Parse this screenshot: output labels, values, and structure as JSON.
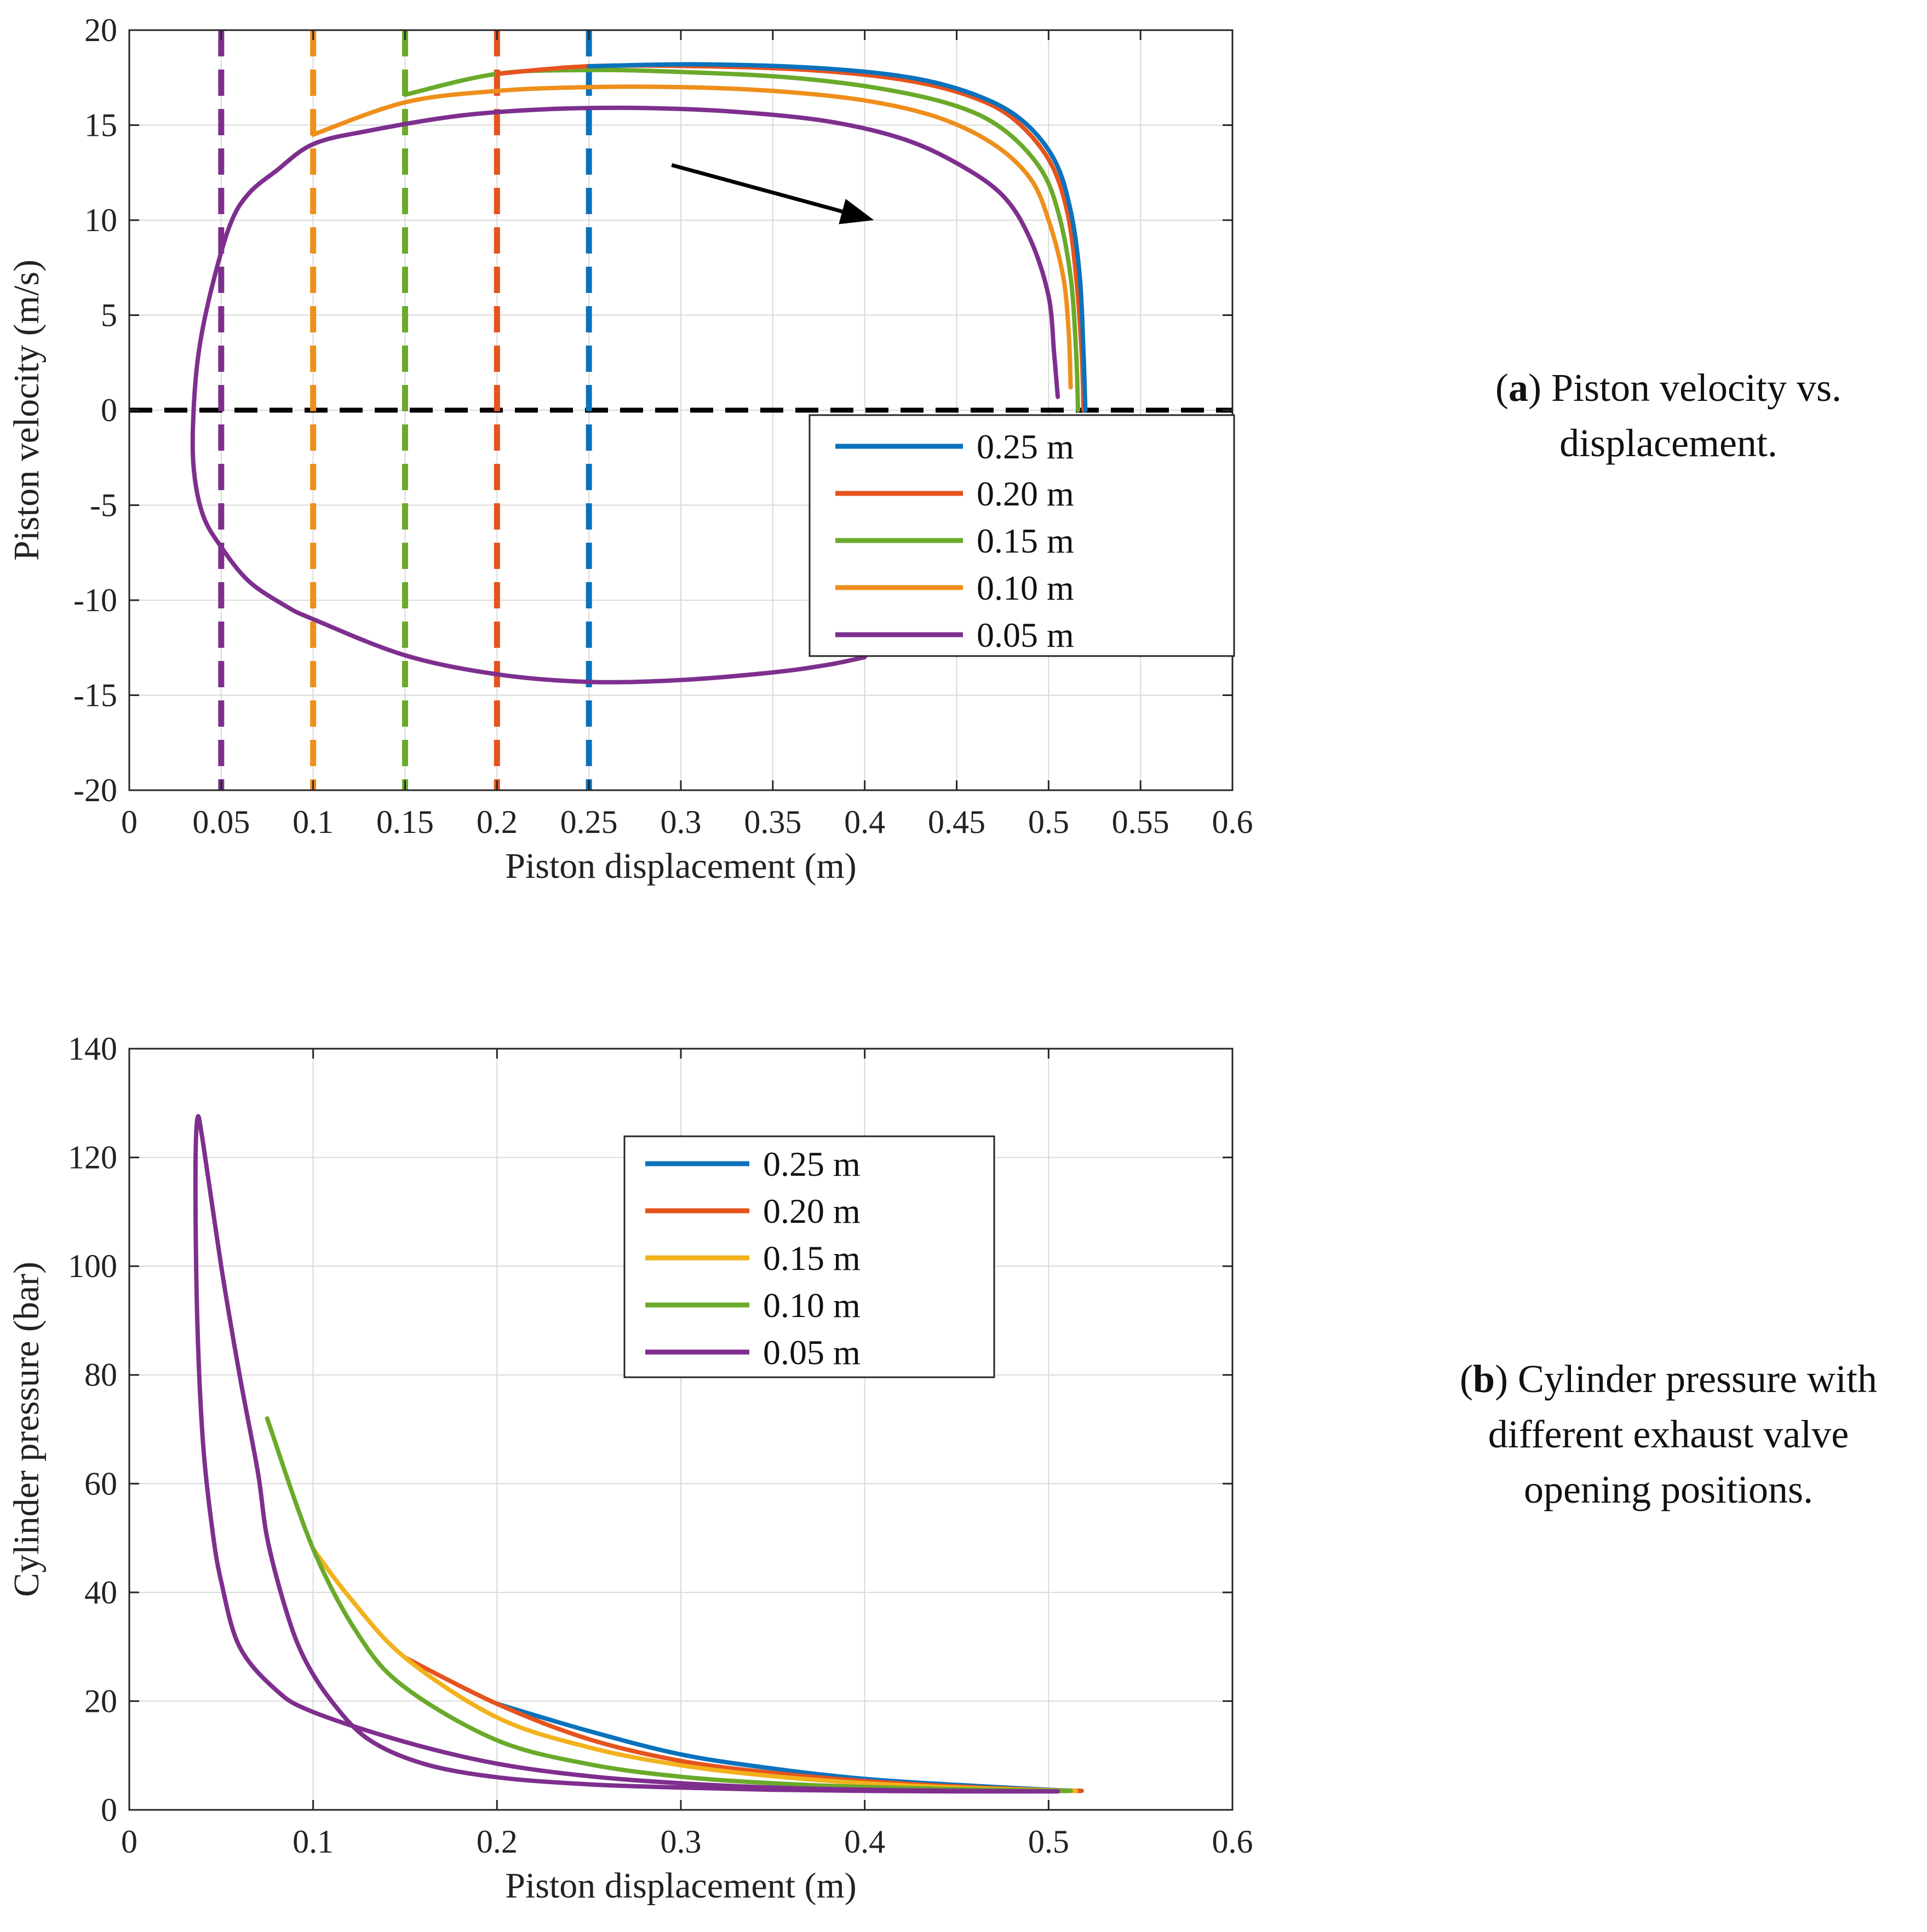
{
  "chart_data": [
    {
      "type": "line",
      "panel": "a",
      "xlabel": "Piston displacement (m)",
      "ylabel": "Piston velocity (m/s)",
      "xlim": [
        0,
        0.6
      ],
      "ylim": [
        -20,
        20
      ],
      "xticks": [
        0,
        0.05,
        0.1,
        0.15,
        0.2,
        0.25,
        0.3,
        0.35,
        0.4,
        0.45,
        0.5,
        0.55,
        0.6
      ],
      "xtick_labels": [
        "0",
        "0.05",
        "0.1",
        "0.15",
        "0.2",
        "0.25",
        "0.3",
        "0.35",
        "0.4",
        "0.45",
        "0.5",
        "0.55",
        "0.6"
      ],
      "yticks": [
        -20,
        -15,
        -10,
        -5,
        0,
        5,
        10,
        15,
        20
      ],
      "ytick_labels": [
        "-20",
        "-15",
        "-10",
        "-5",
        "0",
        "5",
        "10",
        "15",
        "20"
      ],
      "grid": true,
      "legend_position": "right-center",
      "legend": [
        "0.25 m",
        "0.20 m",
        "0.15 m",
        "0.10 m",
        "0.05 m"
      ],
      "series": [
        {
          "name": "0.05 m",
          "color": "#7E2F8E",
          "x": [
            0.505,
            0.503,
            0.5,
            0.49,
            0.475,
            0.45,
            0.42,
            0.38,
            0.33,
            0.28,
            0.23,
            0.18,
            0.13,
            0.1,
            0.08,
            0.065,
            0.055,
            0.045,
            0.038,
            0.035,
            0.035,
            0.04,
            0.05,
            0.065,
            0.085,
            0.1,
            0.15,
            0.2,
            0.25,
            0.3,
            0.35,
            0.38,
            0.4
          ],
          "y": [
            0.7,
            3,
            6,
            9,
            11.3,
            13,
            14.3,
            15.2,
            15.7,
            15.9,
            15.85,
            15.5,
            14.7,
            14,
            12.6,
            11.4,
            9.8,
            6.5,
            3.2,
            0,
            -3,
            -5.5,
            -7.2,
            -9,
            -10.3,
            -11,
            -12.9,
            -13.9,
            -14.3,
            -14.2,
            -13.8,
            -13.4,
            -13
          ]
        },
        {
          "name": "0.10 m",
          "color": "#EE8F1C",
          "x": [
            0.512,
            0.511,
            0.508,
            0.5,
            0.49,
            0.47,
            0.44,
            0.4,
            0.35,
            0.3,
            0.25,
            0.2,
            0.15,
            0.1
          ],
          "y": [
            1.2,
            4,
            7,
            10,
            12.2,
            14,
            15.4,
            16.3,
            16.8,
            17,
            17,
            16.8,
            16.2,
            14.5
          ]
        },
        {
          "name": "0.15 m",
          "color": "#6AAA2A",
          "x": [
            0.516,
            0.515,
            0.512,
            0.505,
            0.495,
            0.475,
            0.45,
            0.41,
            0.36,
            0.3,
            0.25,
            0.2,
            0.15
          ],
          "y": [
            0,
            3,
            7,
            10.5,
            12.8,
            14.8,
            16,
            16.9,
            17.5,
            17.8,
            17.9,
            17.7,
            16.6
          ]
        },
        {
          "name": "0.20 m",
          "color": "#E6531D",
          "x": [
            0.519,
            0.518,
            0.515,
            0.51,
            0.5,
            0.48,
            0.455,
            0.42,
            0.37,
            0.31,
            0.25,
            0.2
          ],
          "y": [
            0,
            3,
            7,
            10.5,
            13.2,
            15.4,
            16.6,
            17.4,
            17.9,
            18.1,
            18.1,
            17.7
          ]
        },
        {
          "name": "0.25 m",
          "color": "#0A72BD",
          "x": [
            0.52,
            0.519,
            0.517,
            0.512,
            0.503,
            0.485,
            0.46,
            0.425,
            0.375,
            0.31,
            0.25
          ],
          "y": [
            0,
            3,
            7,
            10.5,
            13.2,
            15.3,
            16.6,
            17.5,
            18,
            18.2,
            18.1
          ]
        }
      ],
      "markers": [
        {
          "name": "0.05 m",
          "x": 0.05,
          "color": "#7E2F8E"
        },
        {
          "name": "0.10 m",
          "x": 0.1,
          "color": "#EE8F1C"
        },
        {
          "name": "0.15 m",
          "x": 0.15,
          "color": "#6AAA2A"
        },
        {
          "name": "0.20 m",
          "x": 0.2,
          "color": "#E6531D"
        },
        {
          "name": "0.25 m",
          "x": 0.25,
          "color": "#0A72BD"
        }
      ],
      "zero_line": {
        "y": 0,
        "color": "#000000"
      },
      "arrow": {
        "from": [
          0.295,
          12.9
        ],
        "to": [
          0.405,
          10
        ]
      }
    },
    {
      "type": "line",
      "panel": "b",
      "xlabel": "Piston displacement (m)",
      "ylabel": "Cylinder pressure (bar)",
      "xlim": [
        0,
        0.6
      ],
      "ylim": [
        0,
        140
      ],
      "xticks": [
        0,
        0.1,
        0.2,
        0.3,
        0.4,
        0.5,
        0.6
      ],
      "xtick_labels": [
        "0",
        "0.1",
        "0.2",
        "0.3",
        "0.4",
        "0.5",
        "0.6"
      ],
      "yticks": [
        0,
        20,
        40,
        60,
        80,
        100,
        120,
        140
      ],
      "ytick_labels": [
        "0",
        "20",
        "40",
        "60",
        "80",
        "100",
        "120",
        "140"
      ],
      "grid": true,
      "legend_position": "top-center",
      "legend": [
        "0.25 m",
        "0.20 m",
        "0.15 m",
        "0.10 m",
        "0.05 m"
      ],
      "series": [
        {
          "name": "0.25 m",
          "color": "#0A72BD",
          "x": [
            0.2,
            0.25,
            0.3,
            0.35,
            0.4,
            0.45,
            0.5,
            0.518
          ],
          "y": [
            19.5,
            14.5,
            10.2,
            7.6,
            5.7,
            4.6,
            3.7,
            3.5
          ]
        },
        {
          "name": "0.20 m",
          "color": "#E6531D",
          "x": [
            0.15,
            0.2,
            0.25,
            0.3,
            0.35,
            0.4,
            0.45,
            0.5,
            0.518
          ],
          "y": [
            28,
            19.5,
            13,
            9,
            6.8,
            5.3,
            4.3,
            3.6,
            3.5
          ]
        },
        {
          "name": "0.15 m",
          "color": "#F2B21B",
          "x": [
            0.1,
            0.12,
            0.15,
            0.2,
            0.25,
            0.3,
            0.35,
            0.4,
            0.45,
            0.5,
            0.515
          ],
          "y": [
            48,
            39,
            28,
            17,
            11.5,
            8.2,
            6.2,
            4.9,
            4.1,
            3.6,
            3.5
          ]
        },
        {
          "name": "0.10 m",
          "color": "#6AAA2A",
          "x": [
            0.075,
            0.1,
            0.125,
            0.15,
            0.2,
            0.25,
            0.3,
            0.35,
            0.4,
            0.45,
            0.5,
            0.512
          ],
          "y": [
            72,
            48,
            32,
            22.5,
            12.8,
            8.4,
            6.1,
            4.9,
            4.2,
            3.8,
            3.5,
            3.5
          ]
        },
        {
          "name": "0.05 m",
          "color": "#7E2F8E",
          "x": [
            0.505,
            0.45,
            0.4,
            0.35,
            0.3,
            0.25,
            0.2,
            0.16,
            0.13,
            0.11,
            0.095,
            0.085,
            0.075,
            0.07,
            0.06,
            0.05,
            0.04,
            0.037,
            0.036,
            0.037,
            0.04,
            0.045,
            0.05,
            0.06,
            0.08,
            0.1,
            0.15,
            0.2,
            0.25,
            0.3,
            0.35,
            0.4,
            0.45,
            0.505
          ],
          "y": [
            3.4,
            3.4,
            3.5,
            3.7,
            4.1,
            4.7,
            6,
            8.5,
            13,
            20,
            28,
            37,
            50,
            62,
            80,
            100,
            123,
            127,
            115,
            90,
            68,
            52,
            42,
            30,
            22,
            18,
            12.5,
            8.5,
            6.2,
            4.9,
            4.1,
            3.7,
            3.5,
            3.4
          ]
        }
      ]
    }
  ],
  "captions": {
    "a": {
      "label": "a",
      "text_line1": ") Piston velocity vs.",
      "text_line2": "displacement."
    },
    "b": {
      "label": "b",
      "text_line1": ") Cylinder pressure with",
      "text_line2": "different exhaust valve",
      "text_line3": "opening positions."
    }
  }
}
